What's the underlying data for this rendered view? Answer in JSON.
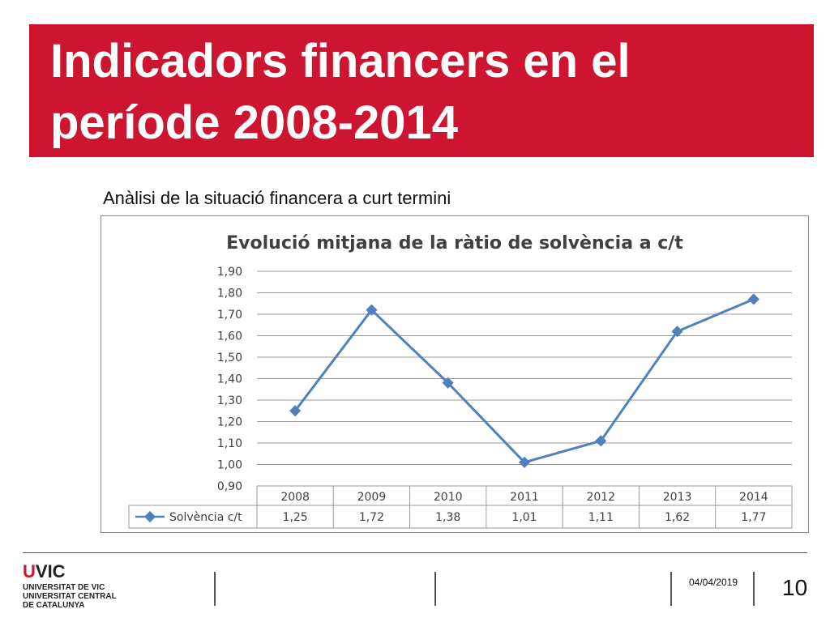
{
  "slide": {
    "title": "Indicadors financers en el període 2008-2014",
    "subtitle": "Anàlisi de la situació financera a curt termini",
    "date": "04/04/2019",
    "page_number": "10",
    "accent_color": "#cd1531"
  },
  "logo": {
    "mark_u": "U",
    "mark_rest": "VIC",
    "lines": [
      "UNIVERSITAT DE VIC",
      "UNIVERSITAT CENTRAL",
      "DE CATALUNYA"
    ]
  },
  "chart_data": {
    "type": "line",
    "title": "Evolució mitjana de la ràtio de solvència a c/t",
    "categories": [
      "2008",
      "2009",
      "2010",
      "2011",
      "2012",
      "2013",
      "2014"
    ],
    "series": [
      {
        "name": "Solvència c/t",
        "values": [
          1.25,
          1.72,
          1.38,
          1.01,
          1.11,
          1.62,
          1.77
        ],
        "value_labels": [
          "1,25",
          "1,72",
          "1,38",
          "1,01",
          "1,11",
          "1,62",
          "1,77"
        ],
        "color": "#4f81bd"
      }
    ],
    "ylim": [
      0.9,
      1.9
    ],
    "y_ticks": [
      "0,90",
      "1,00",
      "1,10",
      "1,20",
      "1,30",
      "1,40",
      "1,50",
      "1,60",
      "1,70",
      "1,80",
      "1,90"
    ],
    "grid": true,
    "legend": "data-table-left"
  }
}
